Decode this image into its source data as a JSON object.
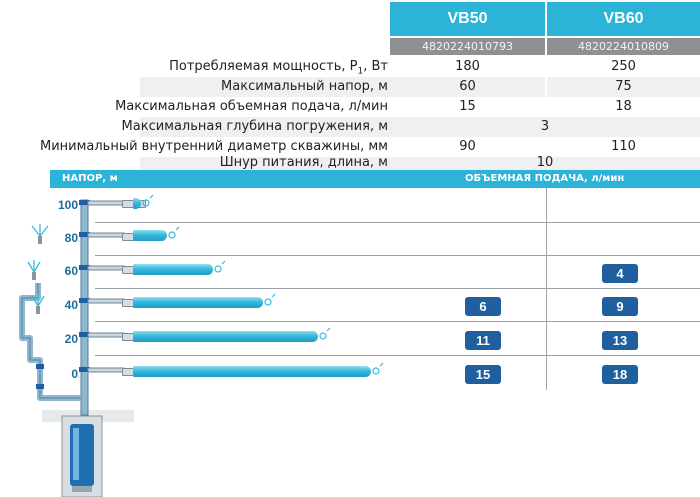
{
  "models": [
    {
      "name": "VB50",
      "code": "4820224010793"
    },
    {
      "name": "VB60",
      "code": "4820224010809"
    }
  ],
  "specs": [
    {
      "label": "Потребляемая мощность, P",
      "sub": "1",
      "label_after": ", Вт",
      "vb50": "180",
      "vb60": "250"
    },
    {
      "label": "Максимальный напор, м",
      "vb50": "60",
      "vb60": "75"
    },
    {
      "label": "Максимальная объемная подача, л/мин",
      "vb50": "15",
      "vb60": "18"
    },
    {
      "label": "Максимальная глубина погружения, м",
      "shared": "3"
    },
    {
      "label": "Минимальный внутренний диаметр скважины, мм",
      "vb50": "90",
      "vb60": "110"
    },
    {
      "label": "Шнур питания, длина, м",
      "shared": "10"
    }
  ],
  "performance": {
    "head_label": "НАПОР, м",
    "flow_label": "ОБЪЕМНАЯ ПОДАЧА, л/мин",
    "levels": [
      {
        "head": "100",
        "vb50": "",
        "vb60": ""
      },
      {
        "head": "80",
        "vb50": "",
        "vb60": ""
      },
      {
        "head": "60",
        "vb50": "",
        "vb60": "4"
      },
      {
        "head": "40",
        "vb50": "6",
        "vb60": "9"
      },
      {
        "head": "20",
        "vb50": "11",
        "vb60": "13"
      },
      {
        "head": "0",
        "vb50": "15",
        "vb60": "18"
      }
    ]
  },
  "colors": {
    "accent": "#2bb3d8",
    "code_bg": "#8e9193",
    "badge": "#1f5f9e",
    "level_text": "#1a6e96",
    "water": "#36b9dc"
  },
  "icons": [
    "pump-icon",
    "water-jet-icon",
    "sprinkler-icon",
    "pipe-icon"
  ]
}
